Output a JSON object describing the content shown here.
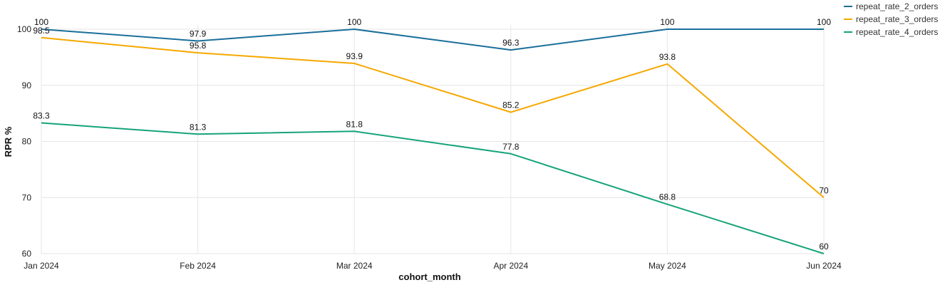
{
  "chart_data": {
    "type": "line",
    "categories": [
      "Jan 2024",
      "Feb 2024",
      "Mar 2024",
      "Apr 2024",
      "May 2024",
      "Jun 2024"
    ],
    "series": [
      {
        "name": "repeat_rate_2_orders",
        "color": "#1a6f9a",
        "values": [
          100,
          97.9,
          100,
          96.3,
          100,
          100
        ]
      },
      {
        "name": "repeat_rate_3_orders",
        "color": "#f5a800",
        "values": [
          98.5,
          95.8,
          93.9,
          85.2,
          93.8,
          70
        ]
      },
      {
        "name": "repeat_rate_4_orders",
        "color": "#16a37a",
        "values": [
          83.3,
          81.3,
          81.8,
          77.8,
          68.8,
          60
        ]
      }
    ],
    "xlabel": "cohort_month",
    "ylabel": "RPR %",
    "ylim": [
      60,
      100
    ],
    "yticks": [
      60,
      70,
      80,
      90,
      100
    ],
    "grid": true,
    "legend_position": "top-right"
  }
}
